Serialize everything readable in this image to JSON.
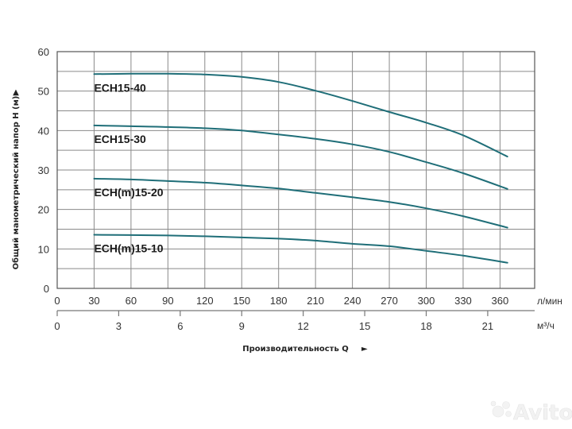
{
  "chart_data": {
    "type": "line",
    "title": "",
    "xlabel": "Производительность Q",
    "ylabel": "Общий манометрический напор H (м)",
    "x_unit_primary": "л/мин",
    "x_unit_secondary": "м³/ч",
    "xlim": [
      0,
      390
    ],
    "ylim": [
      0,
      60
    ],
    "grid": true,
    "x_ticks_primary": [
      0,
      30,
      60,
      90,
      120,
      150,
      180,
      210,
      240,
      270,
      300,
      330,
      360
    ],
    "x_ticks_secondary": [
      0,
      3,
      6,
      9,
      12,
      15,
      18,
      21
    ],
    "y_ticks": [
      0,
      10,
      20,
      30,
      40,
      50,
      60
    ],
    "x": [
      30,
      60,
      90,
      120,
      150,
      180,
      210,
      240,
      270,
      300,
      330,
      366
    ],
    "series": [
      {
        "name": "ECH15-40",
        "values": [
          54.3,
          54.4,
          54.4,
          54.2,
          53.6,
          52.3,
          50.1,
          47.5,
          44.7,
          42.0,
          38.8,
          33.4
        ]
      },
      {
        "name": "ECH15-30",
        "values": [
          41.3,
          41.1,
          40.9,
          40.6,
          40.0,
          39.0,
          37.9,
          36.5,
          34.6,
          32.0,
          29.2,
          25.2
        ]
      },
      {
        "name": "ECH(m)15-20",
        "values": [
          27.8,
          27.6,
          27.2,
          26.8,
          26.1,
          25.3,
          24.2,
          23.1,
          21.9,
          20.3,
          18.3,
          15.4
        ]
      },
      {
        "name": "ECH(m)15-10",
        "values": [
          13.6,
          13.5,
          13.4,
          13.2,
          12.9,
          12.6,
          12.1,
          11.3,
          10.7,
          9.5,
          8.3,
          6.5
        ]
      }
    ],
    "legend": "inline labels below each curve start",
    "colors": {
      "curve": "#1f6e78",
      "grid": "#8a8a8a",
      "frame": "#555555"
    }
  },
  "labels": {
    "y_axis_title": "Общий манометрический напор H (м)",
    "x_axis_title": "Производительность Q",
    "unit_primary": "л/мин",
    "unit_secondary": "м³/ч",
    "arrow_up": "▲",
    "arrow_right": "►"
  },
  "watermark": "Avito"
}
